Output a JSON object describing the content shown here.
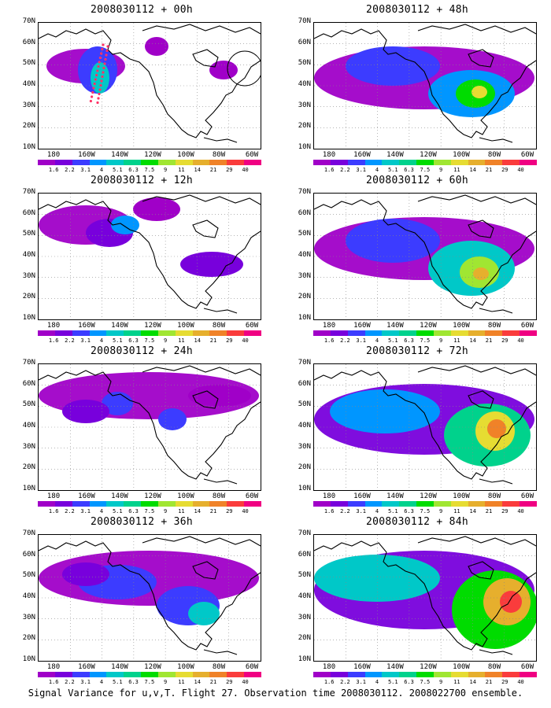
{
  "panels": [
    {
      "title": "2008030112 + 00h",
      "level": 0.15,
      "variant": 0
    },
    {
      "title": "2008030112 + 12h",
      "level": 0.35,
      "variant": 1
    },
    {
      "title": "2008030112 + 24h",
      "level": 0.4,
      "variant": 2
    },
    {
      "title": "2008030112 + 36h",
      "level": 0.55,
      "variant": 3
    },
    {
      "title": "2008030112 + 48h",
      "level": 0.7,
      "variant": 4
    },
    {
      "title": "2008030112 + 60h",
      "level": 0.8,
      "variant": 5
    },
    {
      "title": "2008030112 + 72h",
      "level": 0.9,
      "variant": 6
    },
    {
      "title": "2008030112 + 84h",
      "level": 1.0,
      "variant": 7
    }
  ],
  "y_ticks": [
    "70N",
    "60N",
    "50N",
    "40N",
    "30N",
    "20N",
    "10N"
  ],
  "x_ticks": [
    "180",
    "160W",
    "140W",
    "120W",
    "100W",
    "80W",
    "60W"
  ],
  "colorbar_labels": [
    "1.6",
    "2.2",
    "3.1",
    "4",
    "5.1",
    "6.3",
    "7.5",
    "9",
    "11",
    "14",
    "21",
    "29",
    "40"
  ],
  "colorbar_colors": [
    "#a000c8",
    "#7800dc",
    "#3c3cff",
    "#0096ff",
    "#00c8c8",
    "#00d28c",
    "#00dc00",
    "#a0e632",
    "#e6dc32",
    "#e6af2d",
    "#f08228",
    "#fa3c3c",
    "#f00082"
  ],
  "caption": "Signal Variance for u,v,T. Flight 27. Observation time 2008030112. 2008022700 ensemble."
}
